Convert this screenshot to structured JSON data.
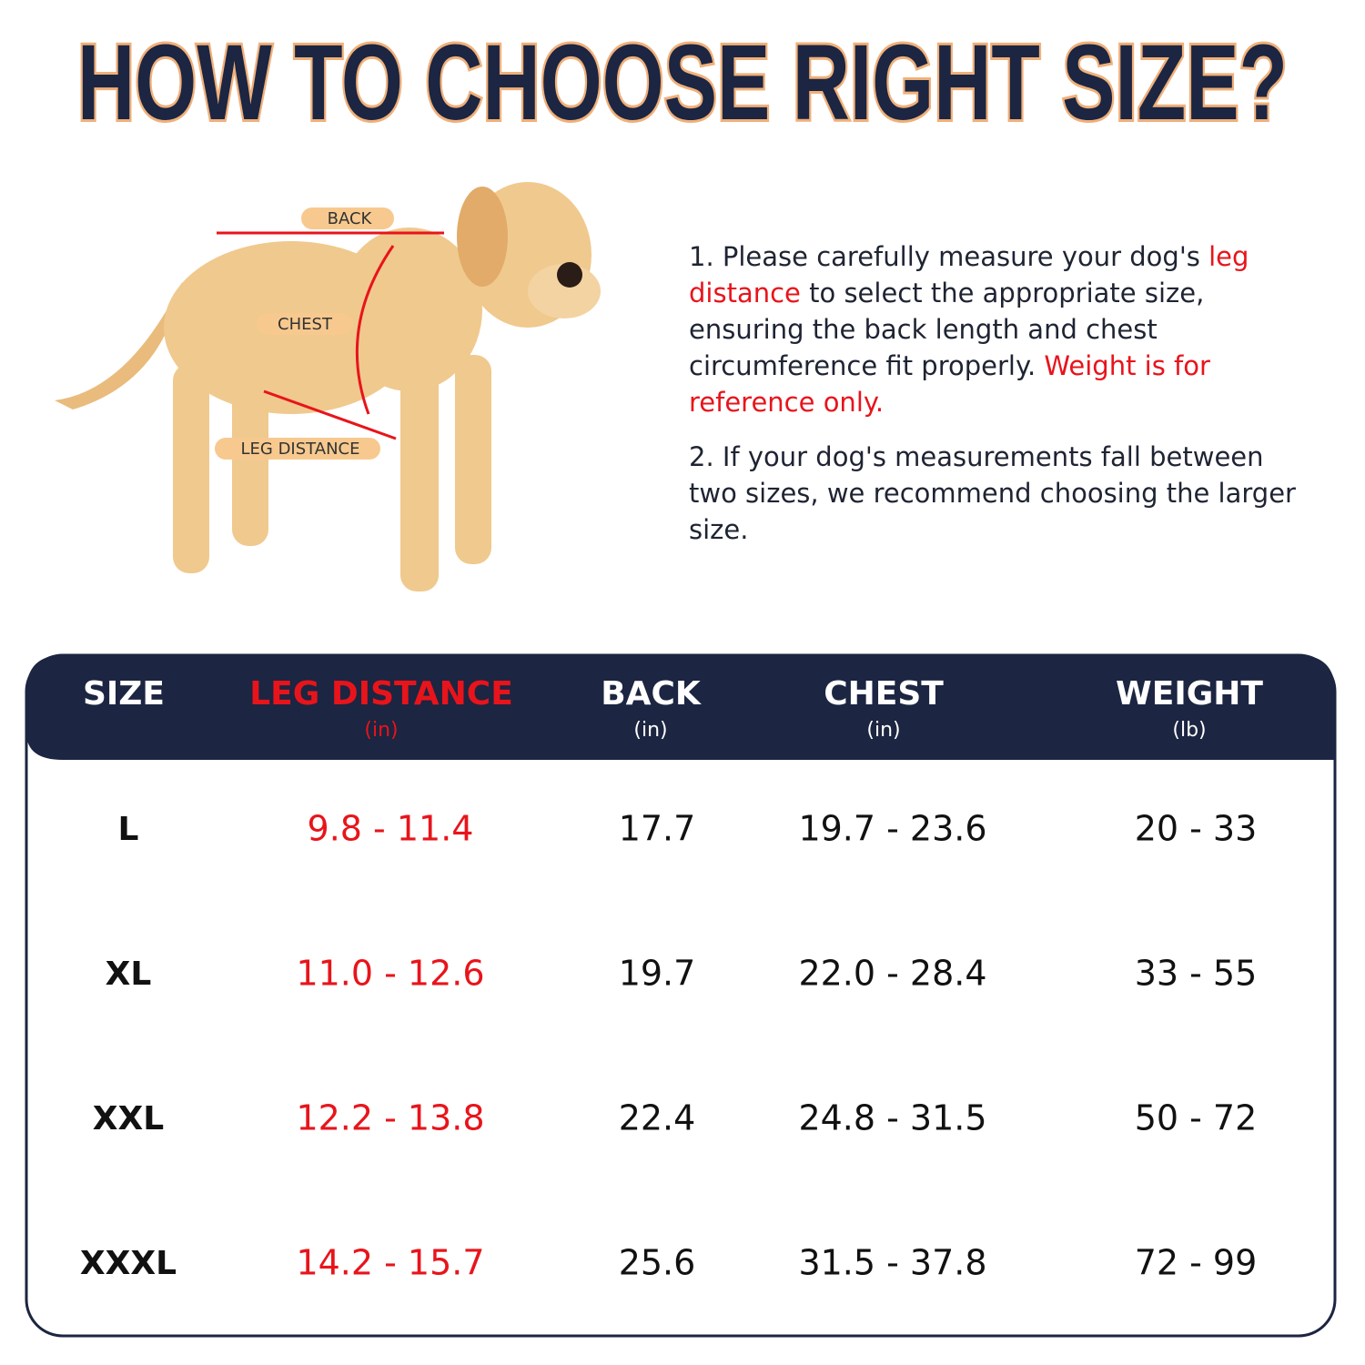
{
  "header": {
    "title": "HOW TO CHOOSE RIGHT SIZE?"
  },
  "diagram": {
    "labels": [
      "BACK",
      "CHEST",
      "LEG DISTANCE"
    ]
  },
  "instructions": [
    {
      "segments": [
        {
          "text": "1. Please carefully measure your dog's ",
          "color": "#1f2433"
        },
        {
          "text": "leg distance",
          "color": "#e8141b"
        },
        {
          "text": " to select the appropriate size, ensuring the back length and chest circumference fit properly. ",
          "color": "#1f2433"
        },
        {
          "text": "Weight is for reference only.",
          "color": "#e8141b"
        }
      ]
    },
    {
      "segments": [
        {
          "text": "2. If your dog's measurements fall between two sizes, we recommend choosing the larger size.",
          "color": "#1f2433"
        }
      ]
    }
  ],
  "table": {
    "columns": [
      {
        "name": "SIZE",
        "color": "#ffffff"
      },
      {
        "name": "LEG DISTANCE",
        "unit": "(in)",
        "color": "#e8141b"
      },
      {
        "name": "BACK",
        "unit": "(in)",
        "color": "#ffffff"
      },
      {
        "name": "CHEST",
        "unit": "(in)",
        "color": "#ffffff"
      },
      {
        "name": "WEIGHT",
        "unit": "(lb)",
        "color": "#ffffff"
      }
    ],
    "cell_colors": [
      "#111111",
      "#e8141b",
      "#111111",
      "#111111",
      "#111111"
    ],
    "rows": [
      [
        "L",
        "9.8 - 11.4",
        "17.7",
        "19.7 - 23.6",
        "20 - 33"
      ],
      [
        "XL",
        "11.0 - 12.6",
        "19.7",
        "22.0 - 28.4",
        "33 - 55"
      ],
      [
        "XXL",
        "12.2 - 13.8",
        "22.4",
        "24.8 - 31.5",
        "50 - 72"
      ],
      [
        "XXXL",
        "14.2 - 15.7",
        "25.6",
        "31.5 - 37.8",
        "72 - 99"
      ]
    ]
  }
}
